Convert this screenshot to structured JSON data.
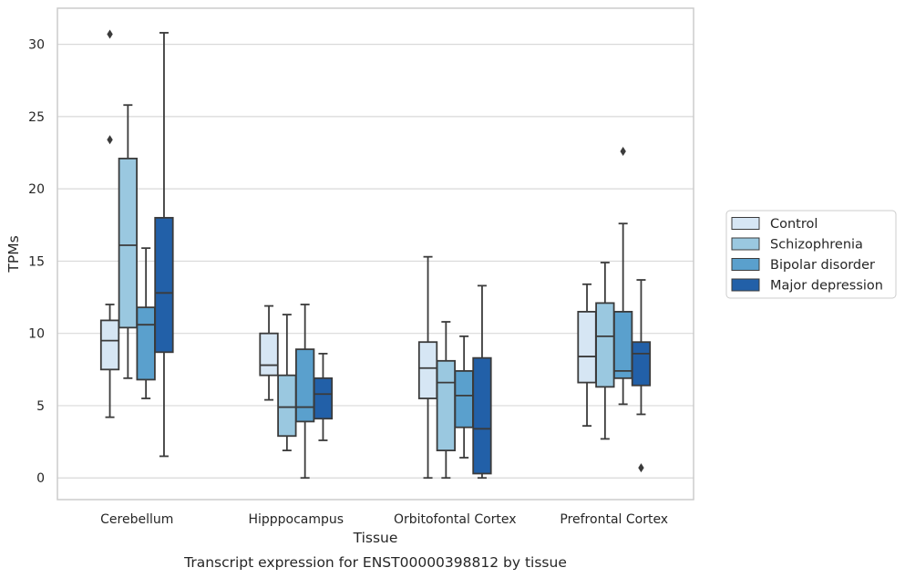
{
  "colors": {
    "Control": "#d6e6f4",
    "Schizophrenia": "#9ac8e0",
    "Bipolar disorder": "#5aa0cd",
    "Major depression": "#2260a8",
    "line": "#3b3b3b",
    "grid": "#d9d9d9",
    "frame": "#cccccc"
  },
  "chart_data": {
    "type": "box",
    "caption": "Transcript expression for ENST00000398812 by tissue",
    "xlabel": "Tissue",
    "ylabel": "TPMs",
    "ylim": [
      -1.5,
      32.5
    ],
    "yticks": [
      0,
      5,
      10,
      15,
      20,
      25,
      30
    ],
    "grid": "horizontal",
    "legend_position": "right",
    "categories": [
      "Cerebellum",
      "Hipppocampus",
      "Orbitofontal Cortex",
      "Prefrontal Cortex"
    ],
    "series": [
      {
        "name": "Control",
        "boxes": [
          {
            "whislo": 4.2,
            "q1": 7.5,
            "med": 9.5,
            "q3": 10.9,
            "whishi": 12.0,
            "fliers": [
              30.7,
              23.4
            ]
          },
          {
            "whislo": 5.4,
            "q1": 7.1,
            "med": 7.8,
            "q3": 10.0,
            "whishi": 11.9,
            "fliers": []
          },
          {
            "whislo": 0.0,
            "q1": 5.5,
            "med": 7.6,
            "q3": 9.4,
            "whishi": 15.3,
            "fliers": []
          },
          {
            "whislo": 3.6,
            "q1": 6.6,
            "med": 8.4,
            "q3": 11.5,
            "whishi": 13.4,
            "fliers": []
          }
        ]
      },
      {
        "name": "Schizophrenia",
        "boxes": [
          {
            "whislo": 6.9,
            "q1": 10.4,
            "med": 16.1,
            "q3": 22.1,
            "whishi": 25.8,
            "fliers": []
          },
          {
            "whislo": 1.9,
            "q1": 2.9,
            "med": 4.9,
            "q3": 7.1,
            "whishi": 11.3,
            "fliers": []
          },
          {
            "whislo": 0.0,
            "q1": 1.9,
            "med": 6.6,
            "q3": 8.1,
            "whishi": 10.8,
            "fliers": []
          },
          {
            "whislo": 2.7,
            "q1": 6.3,
            "med": 9.8,
            "q3": 12.1,
            "whishi": 14.9,
            "fliers": []
          }
        ]
      },
      {
        "name": "Bipolar disorder",
        "boxes": [
          {
            "whislo": 5.5,
            "q1": 6.8,
            "med": 10.6,
            "q3": 11.8,
            "whishi": 15.9,
            "fliers": []
          },
          {
            "whislo": 0.0,
            "q1": 3.9,
            "med": 4.9,
            "q3": 8.9,
            "whishi": 12.0,
            "fliers": []
          },
          {
            "whislo": 1.4,
            "q1": 3.5,
            "med": 5.7,
            "q3": 7.4,
            "whishi": 9.8,
            "fliers": []
          },
          {
            "whislo": 5.1,
            "q1": 6.9,
            "med": 7.4,
            "q3": 11.5,
            "whishi": 17.6,
            "fliers": [
              22.6
            ]
          }
        ]
      },
      {
        "name": "Major depression",
        "boxes": [
          {
            "whislo": 1.5,
            "q1": 8.7,
            "med": 12.8,
            "q3": 18.0,
            "whishi": 30.8,
            "fliers": []
          },
          {
            "whislo": 2.6,
            "q1": 4.1,
            "med": 5.8,
            "q3": 6.9,
            "whishi": 8.6,
            "fliers": []
          },
          {
            "whislo": 0.0,
            "q1": 0.3,
            "med": 3.4,
            "q3": 8.3,
            "whishi": 13.3,
            "fliers": []
          },
          {
            "whislo": 4.4,
            "q1": 6.4,
            "med": 8.6,
            "q3": 9.4,
            "whishi": 13.7,
            "fliers": [
              0.7
            ]
          }
        ]
      }
    ]
  }
}
